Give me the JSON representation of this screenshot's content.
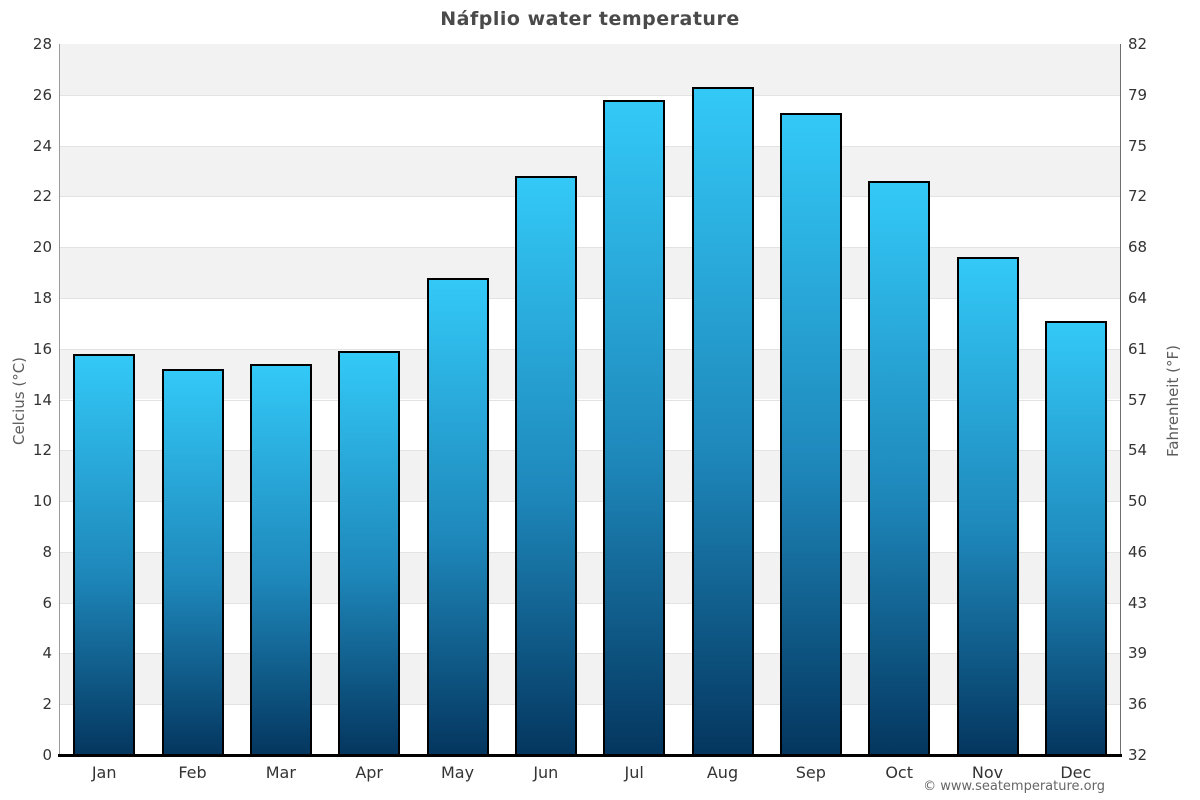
{
  "title": "Náfplio water temperature",
  "watermark": "© www.seatemperature.org",
  "axes": {
    "left_title": "Celcius (°C)",
    "right_title": "Fahrenheit (°F)",
    "celsius_ticks": [
      28,
      26,
      24,
      22,
      20,
      18,
      16,
      14,
      12,
      10,
      8,
      6,
      4,
      2,
      0
    ],
    "fahrenheit_ticks": [
      82,
      79,
      75,
      72,
      68,
      64,
      61,
      57,
      54,
      50,
      46,
      43,
      39,
      36,
      32
    ]
  },
  "chart_data": {
    "type": "bar",
    "title": "Náfplio water temperature",
    "categories": [
      "Jan",
      "Feb",
      "Mar",
      "Apr",
      "May",
      "Jun",
      "Jul",
      "Aug",
      "Sep",
      "Oct",
      "Nov",
      "Dec"
    ],
    "series": [
      {
        "name": "Water temperature (°C)",
        "values": [
          15.8,
          15.2,
          15.4,
          15.9,
          18.8,
          22.8,
          25.8,
          26.3,
          25.3,
          22.6,
          19.6,
          17.1
        ]
      }
    ],
    "xlabel": "",
    "ylabel": "Celcius (°C)",
    "ylabel_right": "Fahrenheit (°F)",
    "ylim": [
      0,
      28
    ],
    "ylim_right_fahrenheit": [
      32,
      82.4
    ],
    "tick_step_celsius": 2,
    "grid": "horizontal alternating bands",
    "legend": "none"
  },
  "colors": {
    "bar_top": "#33c9f7",
    "bar_mid": "#1e87ba",
    "bar_bottom": "#04365f",
    "bar_border": "#000000",
    "band_gray": "#f2f2f2",
    "band_white": "#ffffff",
    "gridline": "#e3e3e3",
    "axis_line_left": "#9a9a9a",
    "axis_line_right": "#6e6e6e",
    "baseline": "#000000",
    "title_color": "#4a4a4a",
    "tick_color": "#333333",
    "axis_title_color": "#5c5c5c",
    "watermark_color": "#666666"
  }
}
